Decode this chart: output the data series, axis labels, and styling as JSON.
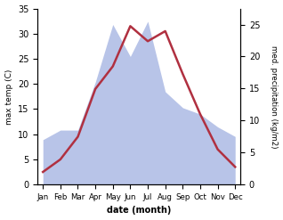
{
  "months": [
    "Jan",
    "Feb",
    "Mar",
    "Apr",
    "May",
    "Jun",
    "Jul",
    "Aug",
    "Sep",
    "Oct",
    "Nov",
    "Dec"
  ],
  "temperature": [
    2.5,
    5.0,
    9.5,
    19.0,
    23.5,
    31.5,
    28.5,
    30.5,
    22.0,
    14.0,
    7.0,
    3.5
  ],
  "precipitation": [
    7.0,
    8.5,
    8.5,
    16.0,
    25.0,
    20.0,
    25.5,
    14.5,
    12.0,
    11.0,
    9.0,
    7.5
  ],
  "temp_color": "#b03040",
  "precip_fill_color": "#b8c4e8",
  "temp_ylim": [
    0,
    35
  ],
  "precip_ylim": [
    0,
    27.5
  ],
  "temp_yticks": [
    0,
    5,
    10,
    15,
    20,
    25,
    30,
    35
  ],
  "precip_yticks": [
    0,
    5,
    10,
    15,
    20,
    25
  ],
  "ylabel_left": "max temp (C)",
  "ylabel_right": "med. precipitation (kg/m2)",
  "xlabel": "date (month)",
  "background_color": "#ffffff"
}
